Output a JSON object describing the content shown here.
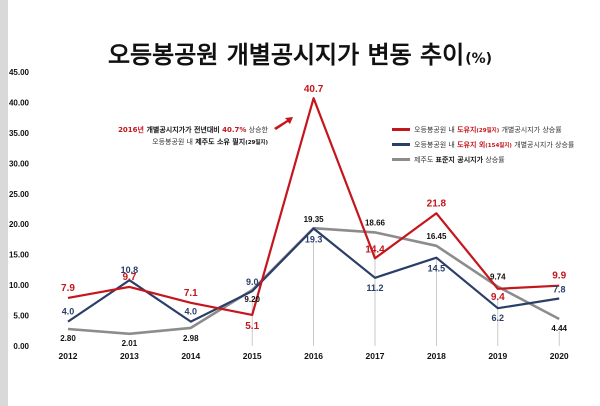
{
  "chart_data": {
    "type": "line",
    "title": "오등봉공원 개별공시지가 변동 추이",
    "title_unit": "(%)",
    "categories": [
      "2012",
      "2013",
      "2014",
      "2015",
      "2016",
      "2017",
      "2018",
      "2019",
      "2020"
    ],
    "y_ticks": [
      "0.00",
      "5.00",
      "10.00",
      "15.00",
      "20.00",
      "25.00",
      "30.00",
      "35.00",
      "40.00",
      "45.00"
    ],
    "ylim": [
      0,
      45
    ],
    "series": [
      {
        "name": "오등봉공원 내 도유지(29필지) 개별공시지가 상승률",
        "legend_parts": [
          "오등봉공원 내 ",
          "도유지",
          "(29필지)",
          " 개별공시지가 상승률"
        ],
        "color": "#c4161c",
        "values": [
          7.9,
          9.7,
          7.1,
          5.1,
          40.7,
          14.4,
          21.8,
          9.4,
          9.9
        ],
        "labels": [
          "7.9",
          "9.7",
          "7.1",
          "5.1",
          "40.7",
          "14.4",
          "21.8",
          "9.4",
          "9.9"
        ]
      },
      {
        "name": "오등봉공원 내 도유지 외(154필지) 개별공시지가 상승률",
        "legend_parts": [
          "오등봉공원 내 ",
          "도유지 외",
          "(154필지)",
          " 개별공시지가 상승률"
        ],
        "color": "#2a3e68",
        "values": [
          4.0,
          10.8,
          4.0,
          9.0,
          19.3,
          11.2,
          14.5,
          6.2,
          7.8
        ],
        "labels": [
          "4.0",
          "10.8",
          "4.0",
          "9.0",
          "19.3",
          "11.2",
          "14.5",
          "6.2",
          "7.8"
        ]
      },
      {
        "name": "제주도 표준지 공시지가 상승률",
        "legend_parts": [
          "제주도 ",
          "표준지 공시지가",
          " 상승률"
        ],
        "color": "#8c8c8c",
        "values": [
          2.8,
          2.01,
          2.98,
          9.2,
          19.35,
          18.66,
          16.45,
          9.74,
          4.44
        ],
        "labels": [
          "2.80",
          "2.01",
          "2.98",
          "9.20",
          "19.35",
          "18.66",
          "16.45",
          "9.74",
          "4.44"
        ]
      }
    ],
    "annotation": {
      "line1_parts": [
        "2016년 ",
        "개별공시지가가 전년대비 ",
        "40.7%",
        " 상승한"
      ],
      "line2_parts": [
        "오등봉공원 내 ",
        "제주도 소유 필지",
        "(29필지)"
      ]
    },
    "legend_position": "top-right",
    "grid": false
  }
}
